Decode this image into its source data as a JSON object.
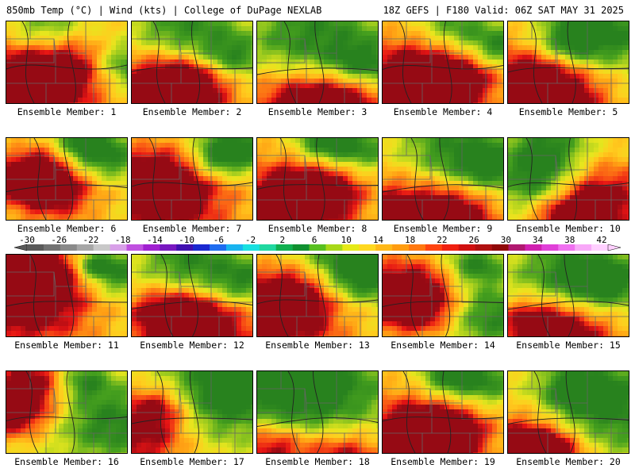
{
  "header": {
    "left": "850mb Temp (°C) | Wind (kts) | College of DuPage NEXLAB",
    "right": "18Z GEFS | F180 Valid: 06Z SAT MAY 31 2025"
  },
  "panel_label_prefix": "Ensemble Member: ",
  "members": [
    {
      "id": "1",
      "label": "Ensemble Member: 1",
      "warm": [
        [
          0.1,
          0.8,
          1.1
        ],
        [
          0.4,
          0.5,
          0.7
        ]
      ],
      "cool": [
        [
          0.3,
          0.1,
          0.6
        ],
        [
          0.95,
          0.5,
          0.5
        ]
      ]
    },
    {
      "id": "2",
      "label": "Ensemble Member: 2",
      "warm": [
        [
          0.15,
          0.85,
          1.0
        ],
        [
          0.45,
          0.7,
          0.6
        ]
      ],
      "cool": [
        [
          0.4,
          0.1,
          0.8
        ],
        [
          0.8,
          0.4,
          0.5
        ]
      ]
    },
    {
      "id": "3",
      "label": "Ensemble Member: 3",
      "warm": [
        [
          0.3,
          0.95,
          0.8
        ],
        [
          0.7,
          0.9,
          0.6
        ]
      ],
      "cool": [
        [
          0.45,
          0.2,
          1.0
        ],
        [
          0.85,
          0.5,
          0.5
        ]
      ]
    },
    {
      "id": "4",
      "label": "Ensemble Member: 4",
      "warm": [
        [
          0.15,
          0.8,
          1.1
        ],
        [
          0.5,
          0.6,
          0.7
        ]
      ],
      "cool": [
        [
          0.6,
          0.1,
          0.6
        ],
        [
          0.95,
          0.3,
          0.4
        ]
      ]
    },
    {
      "id": "5",
      "label": "Ensemble Member: 5",
      "warm": [
        [
          0.1,
          0.8,
          1.0
        ],
        [
          0.3,
          0.9,
          0.7
        ]
      ],
      "cool": [
        [
          0.8,
          0.1,
          0.8
        ],
        [
          0.5,
          0.2,
          0.5
        ]
      ]
    },
    {
      "id": "6",
      "label": "Ensemble Member: 6",
      "warm": [
        [
          0.35,
          0.6,
          0.7
        ],
        [
          0.2,
          0.4,
          0.5
        ]
      ],
      "cool": [
        [
          0.8,
          0.2,
          0.5
        ],
        [
          0.6,
          0.05,
          0.4
        ]
      ]
    },
    {
      "id": "7",
      "label": "Ensemble Member: 7",
      "warm": [
        [
          0.3,
          0.7,
          1.0
        ],
        [
          0.1,
          0.5,
          0.6
        ]
      ],
      "cool": [
        [
          0.9,
          0.05,
          0.6
        ],
        [
          0.7,
          0.2,
          0.4
        ]
      ]
    },
    {
      "id": "8",
      "label": "Ensemble Member: 8",
      "warm": [
        [
          0.15,
          0.8,
          1.0
        ],
        [
          0.5,
          0.6,
          0.6
        ]
      ],
      "cool": [
        [
          0.8,
          0.1,
          0.5
        ],
        [
          0.5,
          0.05,
          0.4
        ]
      ]
    },
    {
      "id": "9",
      "label": "Ensemble Member: 9",
      "warm": [
        [
          0.15,
          0.9,
          1.0
        ],
        [
          0.55,
          0.95,
          0.6
        ]
      ],
      "cool": [
        [
          0.55,
          0.15,
          0.8
        ],
        [
          0.9,
          0.3,
          0.5
        ]
      ]
    },
    {
      "id": "10",
      "label": "Ensemble Member: 10",
      "warm": [
        [
          0.75,
          0.7,
          0.8
        ],
        [
          0.5,
          0.95,
          0.5
        ]
      ],
      "cool": [
        [
          0.2,
          0.5,
          0.6
        ],
        [
          0.3,
          0.1,
          0.6
        ]
      ]
    },
    {
      "id": "11",
      "label": "Ensemble Member: 11",
      "warm": [
        [
          0.1,
          0.6,
          1.1
        ],
        [
          0.2,
          0.2,
          0.7
        ]
      ],
      "cool": [
        [
          0.9,
          0.2,
          0.5
        ],
        [
          0.7,
          0.1,
          0.3
        ]
      ]
    },
    {
      "id": "12",
      "label": "Ensemble Member: 12",
      "warm": [
        [
          0.6,
          0.9,
          0.9
        ],
        [
          0.3,
          0.7,
          0.6
        ]
      ],
      "cool": [
        [
          0.45,
          0.1,
          0.7
        ],
        [
          0.9,
          0.3,
          0.5
        ]
      ]
    },
    {
      "id": "13",
      "label": "Ensemble Member: 13",
      "warm": [
        [
          0.15,
          0.8,
          1.0
        ],
        [
          0.3,
          0.4,
          0.6
        ]
      ],
      "cool": [
        [
          0.65,
          0.1,
          0.8
        ],
        [
          0.9,
          0.2,
          0.5
        ]
      ]
    },
    {
      "id": "14",
      "label": "Ensemble Member: 14",
      "warm": [
        [
          0.1,
          0.4,
          0.7
        ],
        [
          0.3,
          0.6,
          0.6
        ]
      ],
      "cool": [
        [
          0.85,
          0.7,
          0.7
        ],
        [
          0.75,
          0.1,
          0.4
        ]
      ]
    },
    {
      "id": "15",
      "label": "Ensemble Member: 15",
      "warm": [
        [
          0.5,
          0.95,
          0.7
        ],
        [
          0.2,
          0.8,
          0.5
        ]
      ],
      "cool": [
        [
          0.5,
          0.2,
          0.8
        ],
        [
          0.8,
          0.3,
          0.5
        ]
      ]
    },
    {
      "id": "16",
      "label": "Ensemble Member: 16",
      "warm": [
        [
          0.2,
          0.1,
          0.6
        ],
        [
          0.05,
          0.5,
          0.5
        ]
      ],
      "cool": [
        [
          0.85,
          0.6,
          0.8
        ],
        [
          0.6,
          0.1,
          0.4
        ]
      ]
    },
    {
      "id": "17",
      "label": "Ensemble Member: 17",
      "warm": [
        [
          0.05,
          0.8,
          0.8
        ],
        [
          0.2,
          0.4,
          0.5
        ]
      ],
      "cool": [
        [
          0.6,
          0.3,
          1.0
        ],
        [
          0.9,
          0.1,
          0.6
        ]
      ]
    },
    {
      "id": "18",
      "label": "Ensemble Member: 18",
      "warm": [
        [
          0.7,
          1.0,
          0.6
        ],
        [
          0.1,
          0.9,
          0.5
        ]
      ],
      "cool": [
        [
          0.5,
          0.2,
          1.1
        ],
        [
          0.2,
          0.1,
          0.7
        ]
      ]
    },
    {
      "id": "19",
      "label": "Ensemble Member: 19",
      "warm": [
        [
          0.15,
          0.8,
          1.0
        ],
        [
          0.5,
          0.7,
          0.6
        ]
      ],
      "cool": [
        [
          0.8,
          0.1,
          0.5
        ],
        [
          0.5,
          0.05,
          0.4
        ]
      ]
    },
    {
      "id": "20",
      "label": "Ensemble Member: 20",
      "warm": [
        [
          0.05,
          0.9,
          0.8
        ],
        [
          0.3,
          0.95,
          0.5
        ]
      ],
      "cool": [
        [
          0.85,
          0.4,
          1.0
        ],
        [
          0.55,
          0.2,
          0.5
        ]
      ]
    }
  ],
  "colorbar": {
    "labels": [
      "-30",
      "-26",
      "-22",
      "-18",
      "-14",
      "-10",
      "-6",
      "-2",
      "2",
      "6",
      "10",
      "14",
      "18",
      "22",
      "26",
      "30",
      "34",
      "38",
      "42"
    ],
    "colors": [
      "#5a5a5a",
      "#727272",
      "#8a8a8a",
      "#a6a6a6",
      "#c8c8c8",
      "#d8a0e8",
      "#c050e0",
      "#a020d0",
      "#7818c0",
      "#4010b0",
      "#1a28d0",
      "#1e6cf0",
      "#19b4f0",
      "#18e0e0",
      "#20d8a0",
      "#10b050",
      "#109030",
      "#58c020",
      "#a8d818",
      "#e6ea18",
      "#ffd820",
      "#ffb818",
      "#ff9c10",
      "#ff7810",
      "#ff4410",
      "#f02010",
      "#d01010",
      "#b01010",
      "#900808",
      "#b01870",
      "#d020b0",
      "#e040d8",
      "#f070f0",
      "#f8a8f8",
      "#ffd0ff"
    ]
  }
}
